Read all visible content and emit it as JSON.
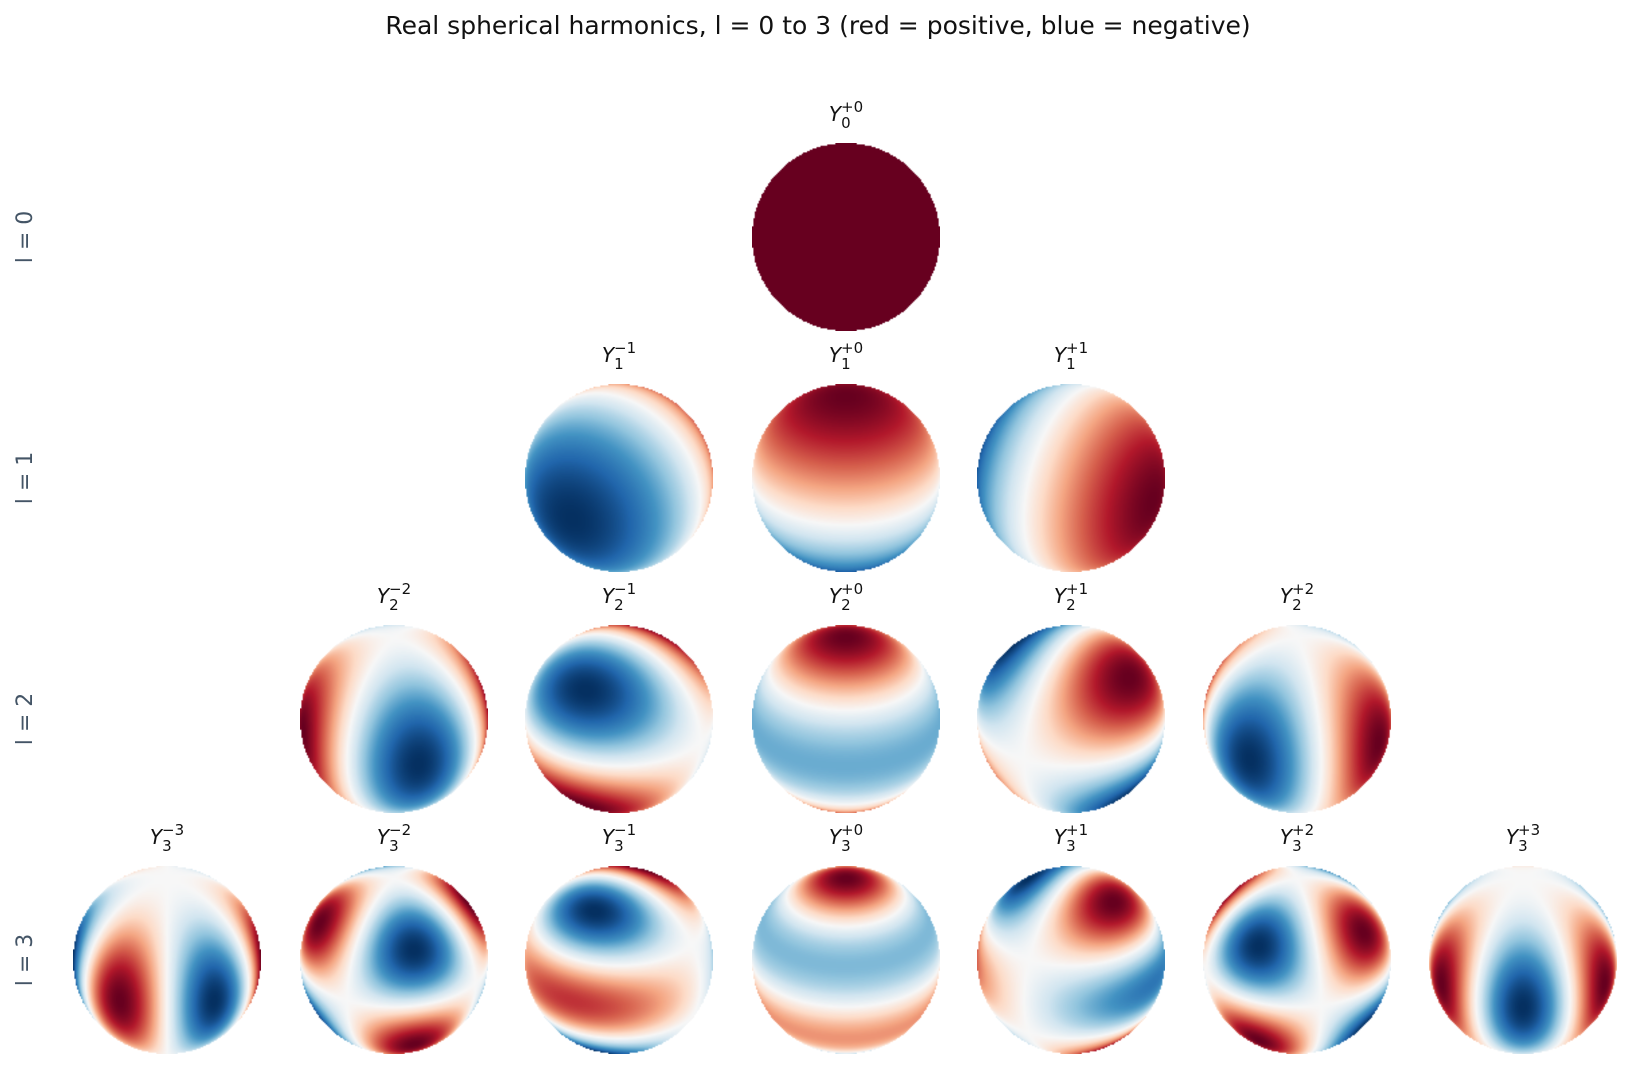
{
  "title": "Real spherical harmonics, l = 0 to 3   (red = positive, blue = negative)",
  "rows": [
    {
      "label": "l = 0",
      "panels": [
        {
          "symbol": "Y",
          "sub": "0",
          "sup": "+0"
        }
      ]
    },
    {
      "label": "l = 1",
      "panels": [
        {
          "symbol": "Y",
          "sub": "1",
          "sup": "−1"
        },
        {
          "symbol": "Y",
          "sub": "1",
          "sup": "+0"
        },
        {
          "symbol": "Y",
          "sub": "1",
          "sup": "+1"
        }
      ]
    },
    {
      "label": "l = 2",
      "panels": [
        {
          "symbol": "Y",
          "sub": "2",
          "sup": "−2"
        },
        {
          "symbol": "Y",
          "sub": "2",
          "sup": "−1"
        },
        {
          "symbol": "Y",
          "sub": "2",
          "sup": "+0"
        },
        {
          "symbol": "Y",
          "sub": "2",
          "sup": "+1"
        },
        {
          "symbol": "Y",
          "sub": "2",
          "sup": "+2"
        }
      ]
    },
    {
      "label": "l = 3",
      "panels": [
        {
          "symbol": "Y",
          "sub": "3",
          "sup": "−3"
        },
        {
          "symbol": "Y",
          "sub": "3",
          "sup": "−2"
        },
        {
          "symbol": "Y",
          "sub": "3",
          "sup": "−1"
        },
        {
          "symbol": "Y",
          "sub": "3",
          "sup": "+0"
        },
        {
          "symbol": "Y",
          "sub": "3",
          "sup": "+1"
        },
        {
          "symbol": "Y",
          "sub": "3",
          "sup": "+2"
        },
        {
          "symbol": "Y",
          "sub": "3",
          "sup": "+3"
        }
      ]
    }
  ]
}
